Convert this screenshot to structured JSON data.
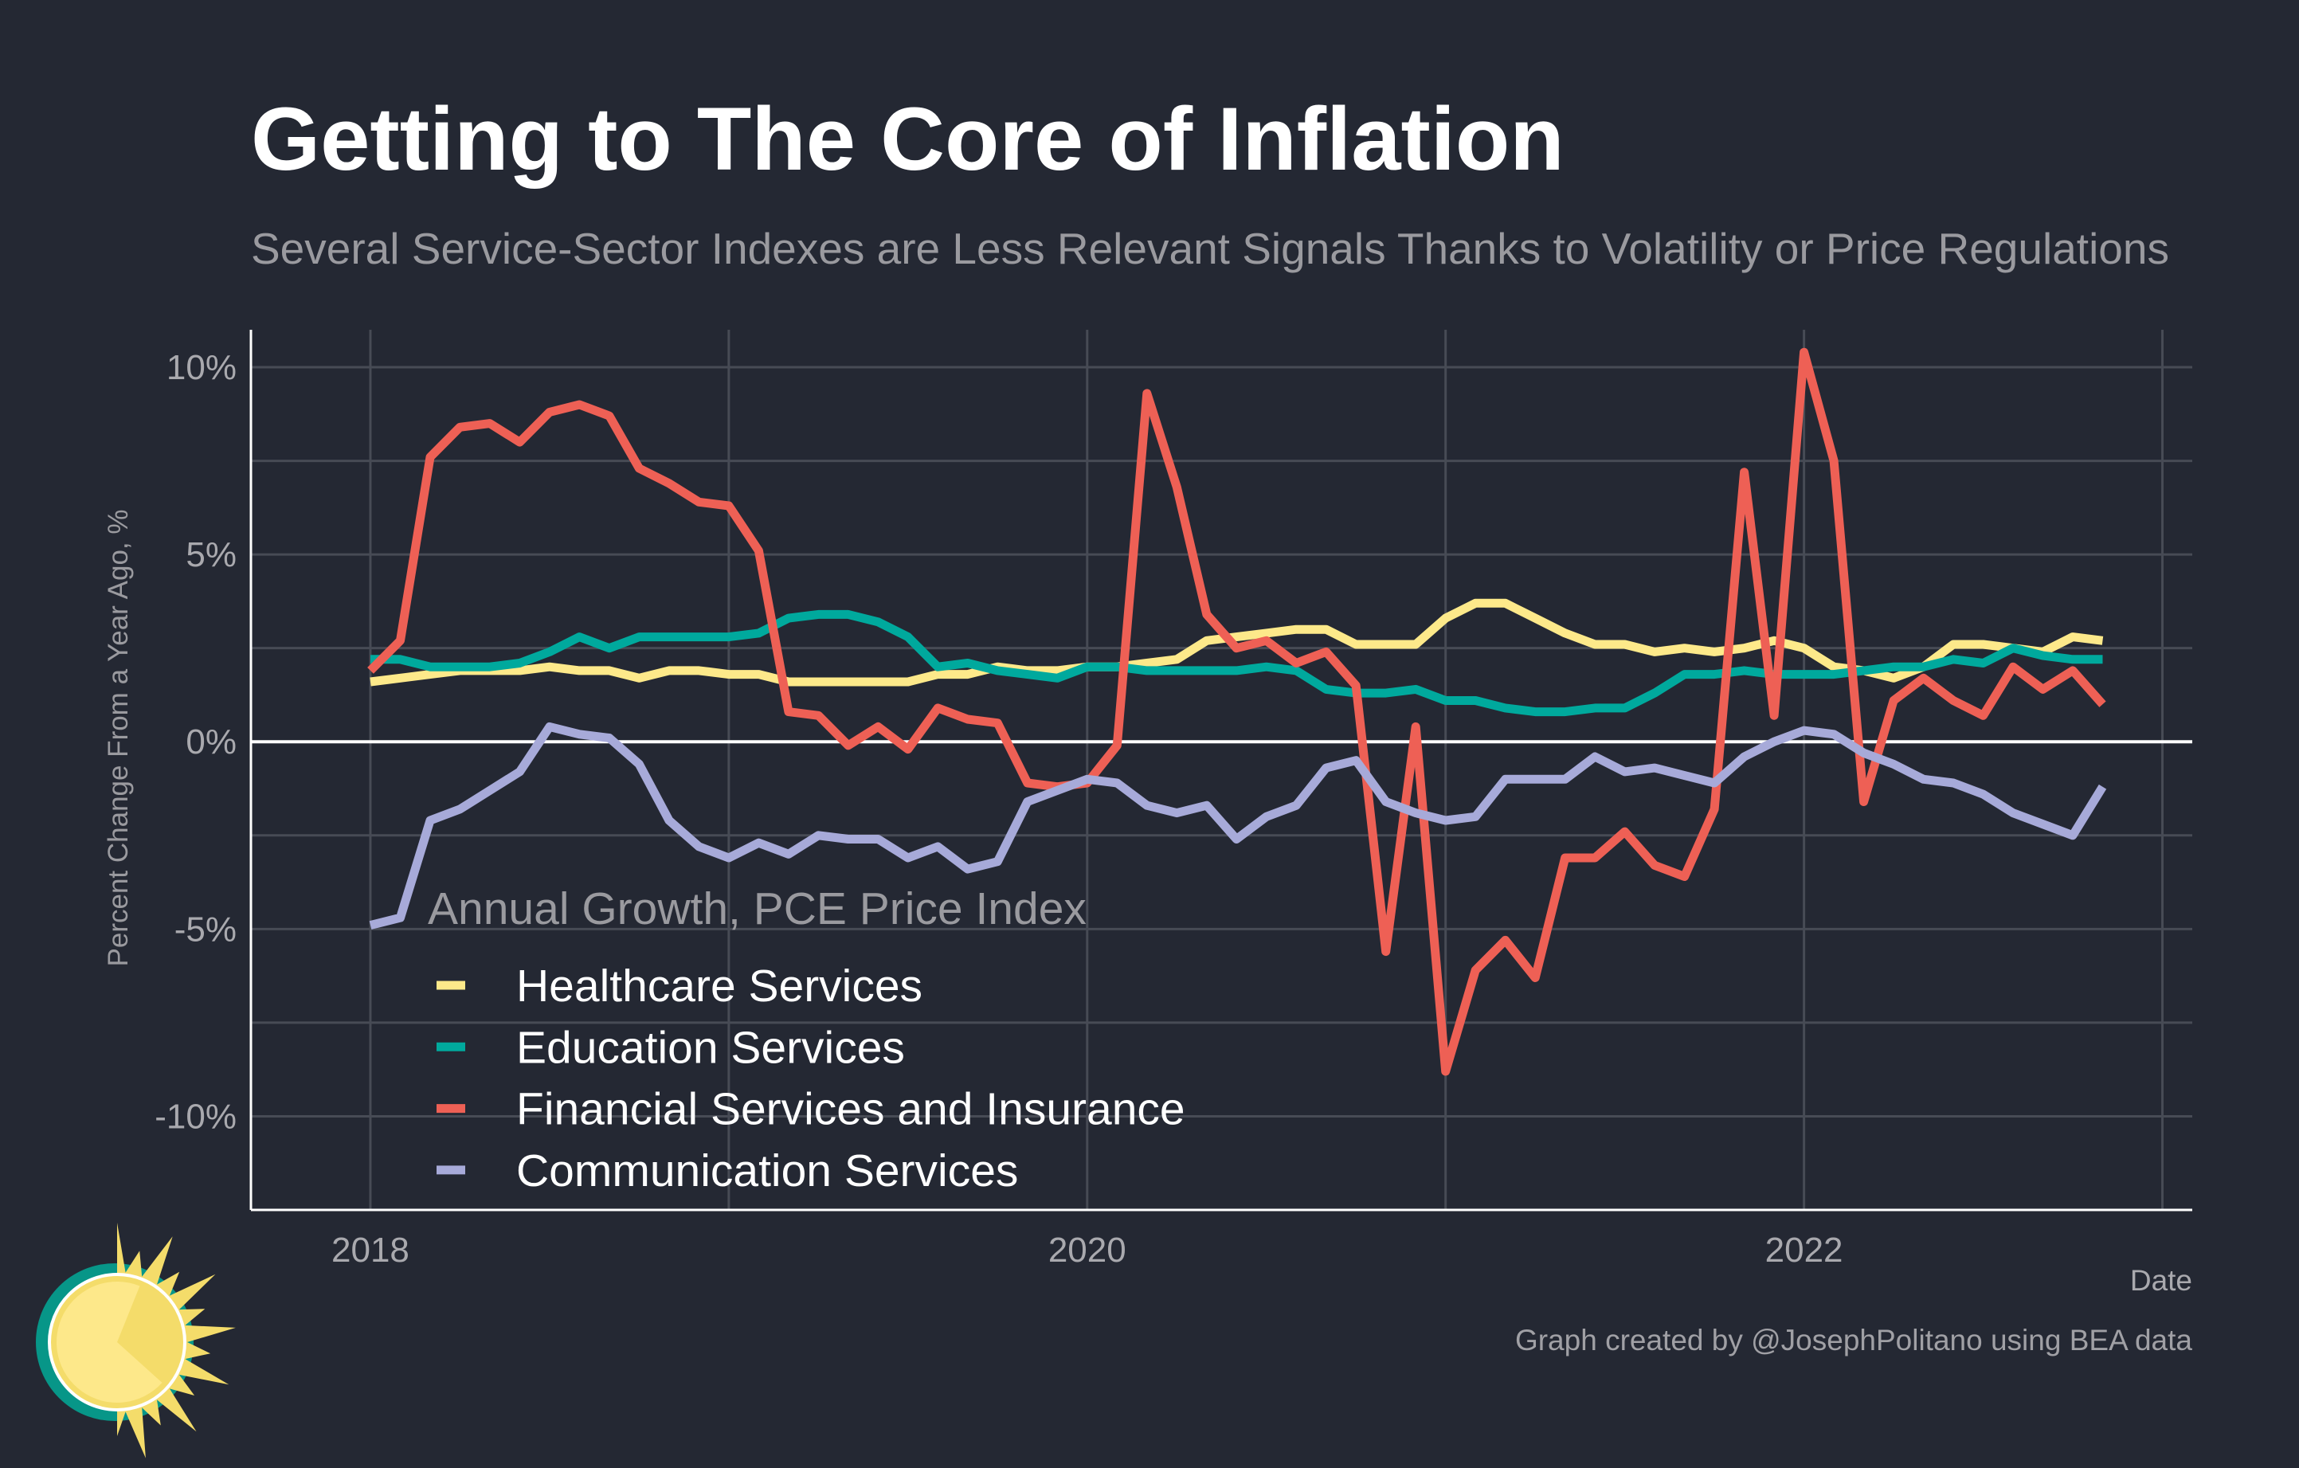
{
  "title": "Getting to The Core of Inflation",
  "subtitle": "Several Service-Sector Indexes are Less Relevant Signals Thanks to Volatility or Price Regulations",
  "caption": "Graph created by @JosephPolitano using BEA data",
  "logo": {
    "name": "sun-logo-icon",
    "colors": [
      "#f4dc6a",
      "#fde88a",
      "#079688",
      "#ffffff"
    ]
  },
  "background": "#242833",
  "chart_data": {
    "type": "line",
    "title": "Getting to The Core of Inflation",
    "subtitle": "Several Service-Sector Indexes are Less Relevant Signals Thanks to Volatility or Price Regulations",
    "xlabel": "Date",
    "ylabel": "Percent Change From a Year Ago, %",
    "x_ticks": [
      "2018",
      "2020",
      "2022"
    ],
    "y_ticks": [
      {
        "value": 10,
        "label": "10%"
      },
      {
        "value": 5,
        "label": "5%"
      },
      {
        "value": 0,
        "label": "0%"
      },
      {
        "value": -5,
        "label": "-5%"
      },
      {
        "value": -10,
        "label": "-10%"
      }
    ],
    "xlim": [
      "2017-09",
      "2023-02"
    ],
    "ylim": [
      -12.5,
      11
    ],
    "grid": true,
    "legend": {
      "title": "Annual Growth, PCE Price Index",
      "placement": "bottom-left"
    },
    "x": [
      "2018-01",
      "2018-02",
      "2018-03",
      "2018-04",
      "2018-05",
      "2018-06",
      "2018-07",
      "2018-08",
      "2018-09",
      "2018-10",
      "2018-11",
      "2018-12",
      "2019-01",
      "2019-02",
      "2019-03",
      "2019-04",
      "2019-05",
      "2019-06",
      "2019-07",
      "2019-08",
      "2019-09",
      "2019-10",
      "2019-11",
      "2019-12",
      "2020-01",
      "2020-02",
      "2020-03",
      "2020-04",
      "2020-05",
      "2020-06",
      "2020-07",
      "2020-08",
      "2020-09",
      "2020-10",
      "2020-11",
      "2020-12",
      "2021-01",
      "2021-02",
      "2021-03",
      "2021-04",
      "2021-05",
      "2021-06",
      "2021-07",
      "2021-08",
      "2021-09",
      "2021-10",
      "2021-11",
      "2021-12",
      "2022-01",
      "2022-02",
      "2022-03",
      "2022-04",
      "2022-05",
      "2022-06",
      "2022-07",
      "2022-08",
      "2022-09",
      "2022-10",
      "2022-11"
    ],
    "series": [
      {
        "name": "Healthcare Services",
        "color": "#fde98a",
        "values": [
          1.6,
          1.7,
          1.8,
          1.9,
          1.9,
          1.9,
          2.0,
          1.9,
          1.9,
          1.7,
          1.9,
          1.9,
          1.8,
          1.8,
          1.6,
          1.6,
          1.6,
          1.6,
          1.6,
          1.8,
          1.8,
          2.0,
          1.9,
          1.9,
          2.0,
          2.0,
          2.1,
          2.2,
          2.7,
          2.8,
          2.9,
          3.0,
          3.0,
          2.6,
          2.6,
          2.6,
          3.3,
          3.7,
          3.7,
          3.3,
          2.9,
          2.6,
          2.6,
          2.4,
          2.5,
          2.4,
          2.5,
          2.7,
          2.5,
          2.0,
          1.9,
          1.7,
          2.0,
          2.6,
          2.6,
          2.5,
          2.4,
          2.8,
          2.7
        ]
      },
      {
        "name": "Education Services",
        "color": "#00a99d",
        "values": [
          2.2,
          2.2,
          2.0,
          2.0,
          2.0,
          2.1,
          2.4,
          2.8,
          2.5,
          2.8,
          2.8,
          2.8,
          2.8,
          2.9,
          3.3,
          3.4,
          3.4,
          3.2,
          2.8,
          2.0,
          2.1,
          1.9,
          1.8,
          1.7,
          2.0,
          2.0,
          1.9,
          1.9,
          1.9,
          1.9,
          2.0,
          1.9,
          1.4,
          1.3,
          1.3,
          1.4,
          1.1,
          1.1,
          0.9,
          0.8,
          0.8,
          0.9,
          0.9,
          1.3,
          1.8,
          1.8,
          1.9,
          1.8,
          1.8,
          1.8,
          1.9,
          2.0,
          2.0,
          2.2,
          2.1,
          2.5,
          2.3,
          2.2,
          2.2
        ]
      },
      {
        "name": "Financial Services and Insurance",
        "color": "#ee6055",
        "values": [
          1.9,
          2.7,
          7.6,
          8.4,
          8.5,
          8.0,
          8.8,
          9.0,
          8.7,
          7.3,
          6.9,
          6.4,
          6.3,
          5.1,
          0.8,
          0.7,
          -0.1,
          0.4,
          -0.2,
          0.9,
          0.6,
          0.5,
          -1.1,
          -1.2,
          -1.1,
          -0.1,
          9.3,
          6.8,
          3.4,
          2.5,
          2.7,
          2.1,
          2.4,
          1.5,
          -5.6,
          0.4,
          -8.8,
          -6.1,
          -5.3,
          -6.3,
          -3.1,
          -3.1,
          -2.4,
          -3.3,
          -3.6,
          -1.8,
          7.2,
          0.7,
          10.4,
          7.5,
          -1.6,
          1.1,
          1.7,
          1.1,
          0.7,
          2.0,
          1.4,
          1.9,
          1.0
        ]
      },
      {
        "name": "Communication Services",
        "color": "#a7aad9",
        "values": [
          -4.9,
          -4.7,
          -2.1,
          -1.8,
          -1.3,
          -0.8,
          0.4,
          0.2,
          0.1,
          -0.6,
          -2.1,
          -2.8,
          -3.1,
          -2.7,
          -3.0,
          -2.5,
          -2.6,
          -2.6,
          -3.1,
          -2.8,
          -3.4,
          -3.2,
          -1.6,
          -1.3,
          -1.0,
          -1.1,
          -1.7,
          -1.9,
          -1.7,
          -2.6,
          -2.0,
          -1.7,
          -0.7,
          -0.5,
          -1.6,
          -1.9,
          -2.1,
          -2.0,
          -1.0,
          -1.0,
          -1.0,
          -0.4,
          -0.8,
          -0.7,
          -0.9,
          -1.1,
          -0.4,
          0.0,
          0.3,
          0.2,
          -0.3,
          -0.6,
          -1.0,
          -1.1,
          -1.4,
          -1.9,
          -2.2,
          -2.5,
          -1.2
        ]
      }
    ]
  }
}
